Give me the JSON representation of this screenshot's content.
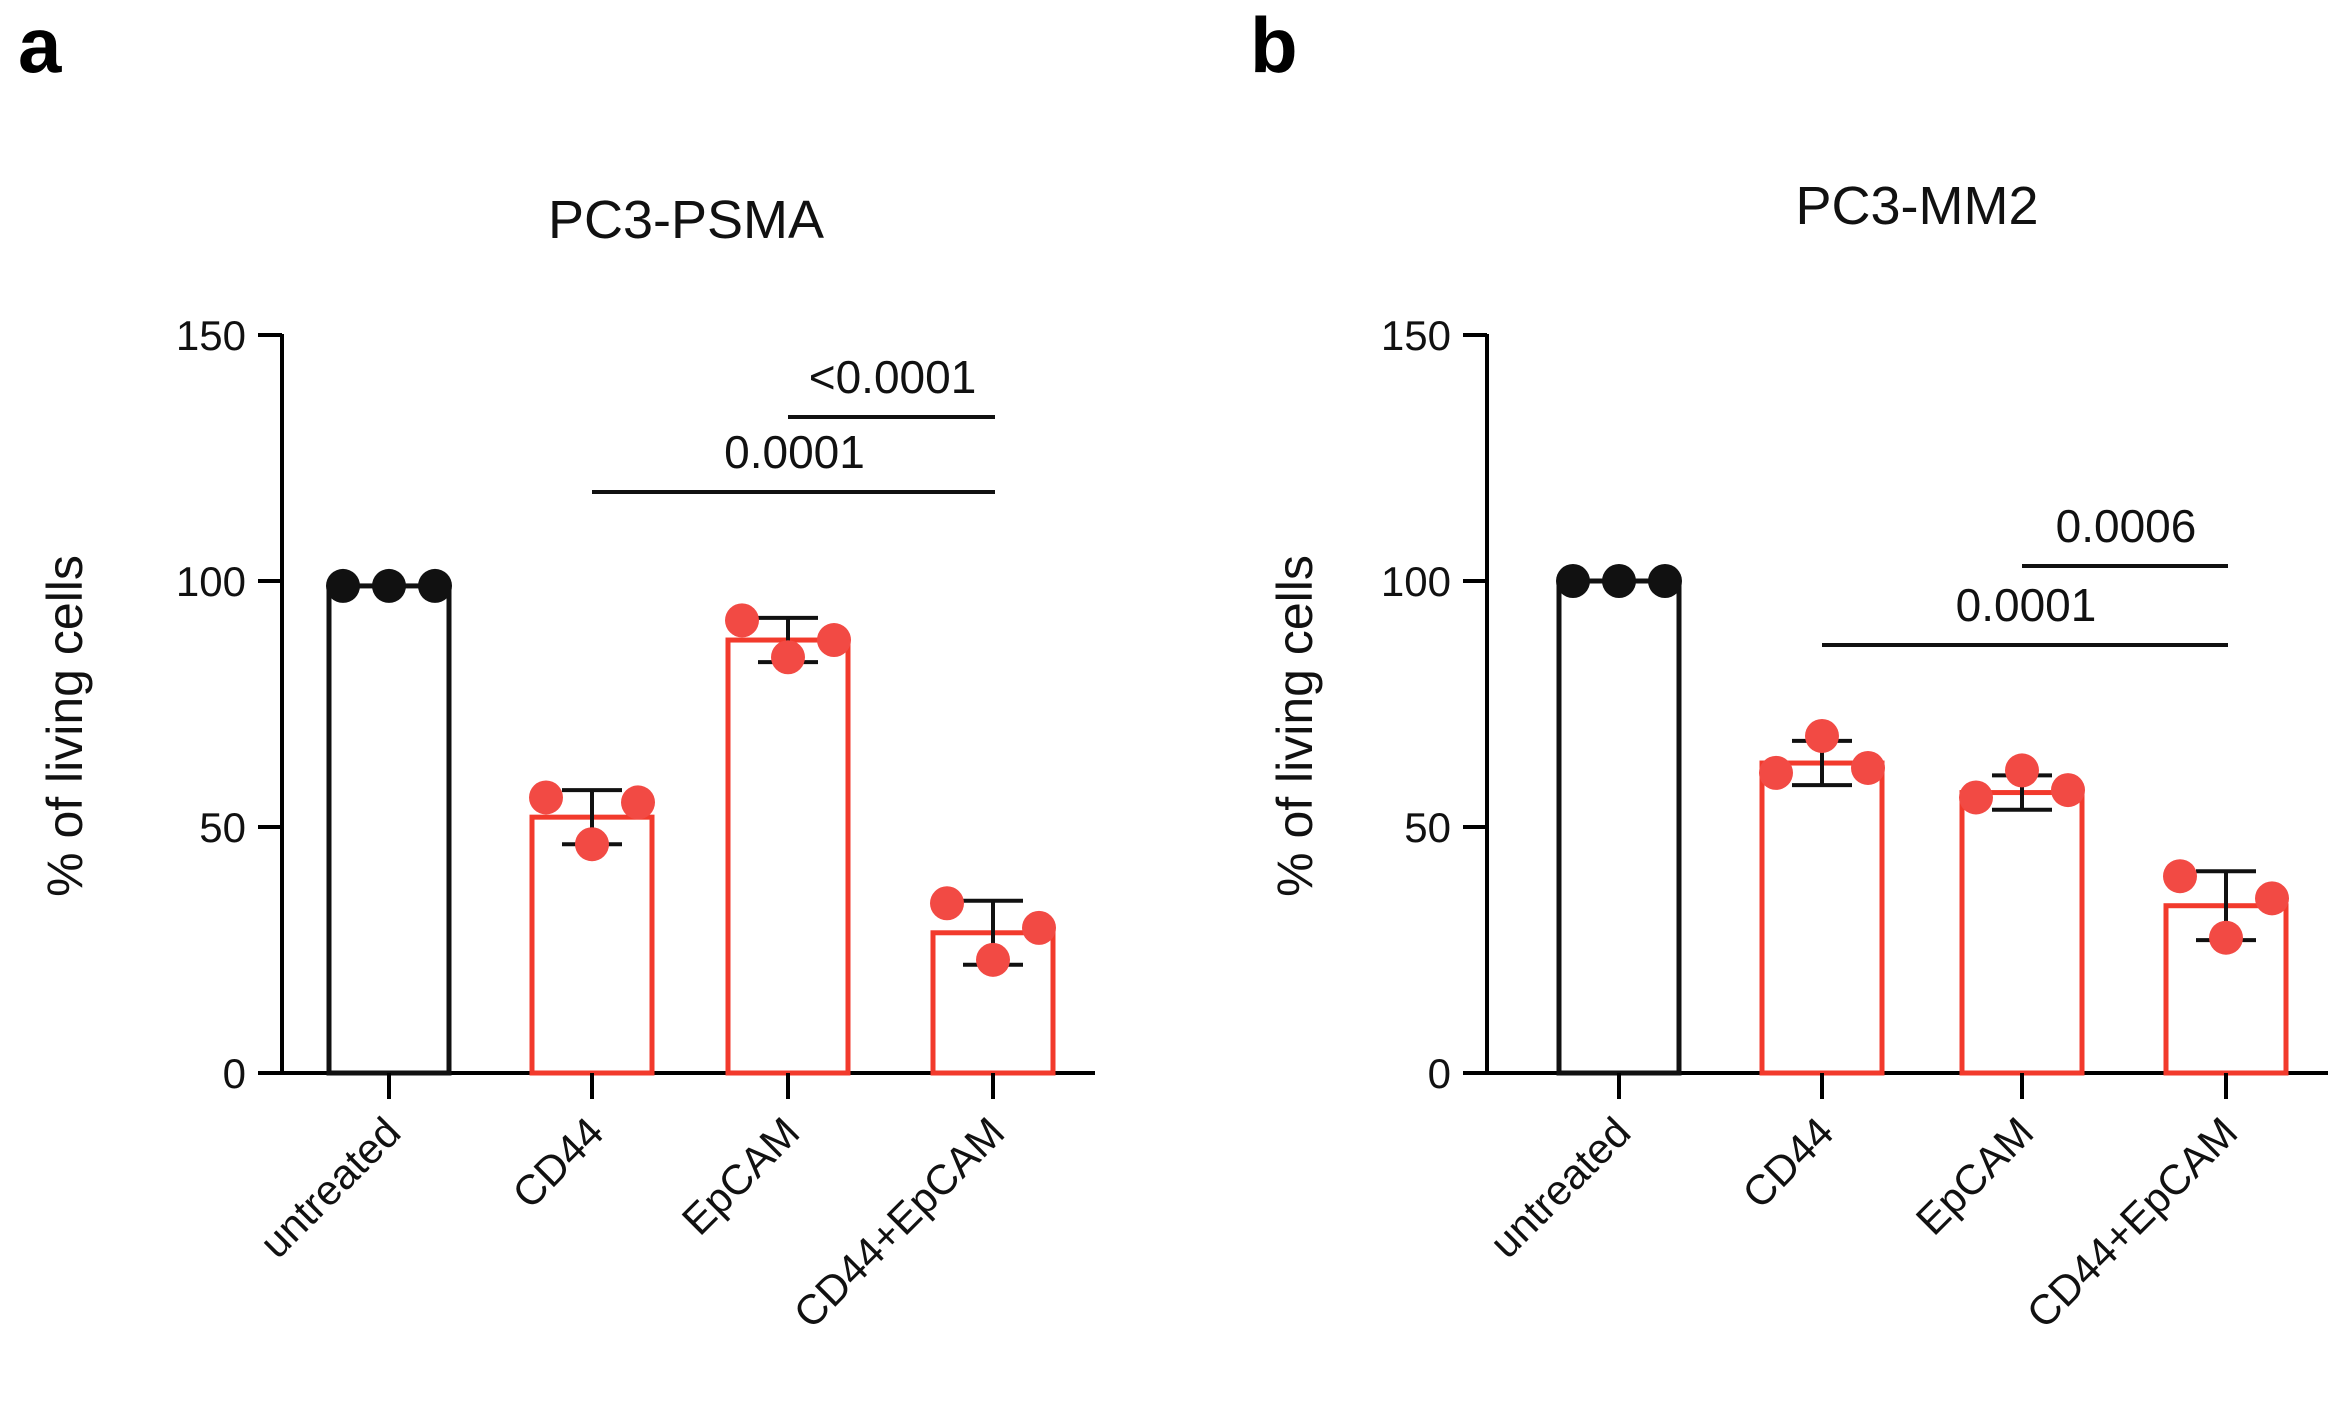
{
  "colors": {
    "control": "#111111",
    "treated": "#f23a2c",
    "treated_point": "#f24a44",
    "axis": "#000000"
  },
  "panels": [
    {
      "letter": "a"
    },
    {
      "letter": "b"
    }
  ],
  "chart_data": [
    {
      "type": "bar",
      "title": "PC3-PSMA",
      "ylabel": "% of living cells",
      "xlabel": "",
      "categories": [
        "untreated",
        "CD44",
        "EpCAM",
        "CD44+EpCAM"
      ],
      "values": [
        99,
        52,
        88,
        28.5
      ],
      "sd": [
        0,
        5.5,
        4.5,
        6.5
      ],
      "points": [
        [
          99,
          99,
          99
        ],
        [
          56,
          46.5,
          55
        ],
        [
          92,
          84.5,
          88
        ],
        [
          34.5,
          23,
          29.5
        ]
      ],
      "ylim": [
        0,
        150
      ],
      "yticks": [
        0,
        50,
        100,
        150
      ],
      "comparisons": [
        {
          "from": "EpCAM",
          "to": "CD44+EpCAM",
          "label": "<0.0001"
        },
        {
          "from": "CD44",
          "to": "CD44+EpCAM",
          "label": "0.0001"
        }
      ]
    },
    {
      "type": "bar",
      "title": "PC3-MM2",
      "ylabel": "% of living cells",
      "xlabel": "",
      "categories": [
        "untreated",
        "CD44",
        "EpCAM",
        "CD44+EpCAM"
      ],
      "values": [
        100,
        63,
        57,
        34
      ],
      "sd": [
        0,
        4.5,
        3.5,
        7
      ],
      "points": [
        [
          100,
          100,
          100
        ],
        [
          61,
          68.5,
          62
        ],
        [
          56,
          61.5,
          57.5
        ],
        [
          40,
          27.5,
          35.5
        ]
      ],
      "ylim": [
        0,
        150
      ],
      "yticks": [
        0,
        50,
        100,
        150
      ],
      "comparisons": [
        {
          "from": "EpCAM",
          "to": "CD44+EpCAM",
          "label": "0.0006"
        },
        {
          "from": "CD44",
          "to": "CD44+EpCAM",
          "label": "0.0001"
        }
      ]
    }
  ]
}
